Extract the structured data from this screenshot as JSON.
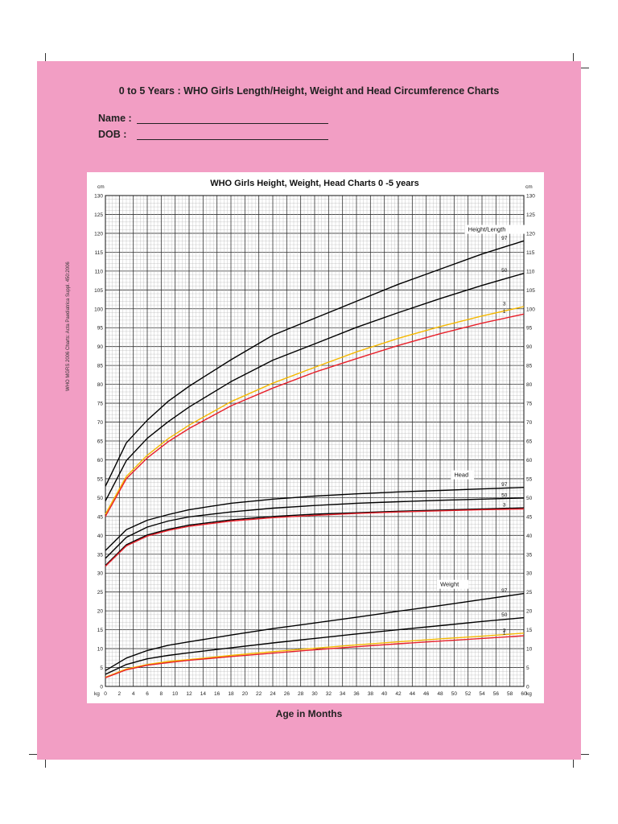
{
  "page": {
    "title": "0 to 5 Years : WHO Girls Length/Height, Weight and Head Circumference Charts",
    "name_label": "Name :",
    "dob_label": "DOB   :",
    "x_axis_title": "Age in Months",
    "reference": "WHO MGRS 2006 Charts: Acta Paediatrica Suppl. 450:2006",
    "colors": {
      "background": "#f29ec4",
      "p97": "#000000",
      "p50": "#000000",
      "p3": "#f5b800",
      "p1": "#e8202a"
    }
  },
  "chart_data": {
    "type": "line",
    "title": "WHO Girls Height, Weight, Head Charts 0 -5 years",
    "y_unit_label": "cm",
    "y_unit_label_bottom": "kg",
    "x_unit_label": "kg",
    "xlim": [
      0,
      60
    ],
    "ylim": [
      0,
      130
    ],
    "x_ticks": [
      0,
      2,
      4,
      6,
      8,
      10,
      12,
      14,
      16,
      18,
      20,
      22,
      24,
      26,
      28,
      30,
      32,
      34,
      36,
      38,
      40,
      42,
      44,
      46,
      48,
      50,
      52,
      54,
      56,
      58,
      60
    ],
    "y_ticks": [
      0,
      5,
      10,
      15,
      20,
      25,
      30,
      35,
      40,
      45,
      50,
      55,
      60,
      65,
      70,
      75,
      80,
      85,
      90,
      95,
      100,
      105,
      110,
      115,
      120,
      125,
      130
    ],
    "grid": true,
    "x": [
      0,
      3,
      6,
      9,
      12,
      18,
      24,
      30,
      36,
      42,
      48,
      54,
      60
    ],
    "groups": [
      {
        "name": "Height/Length",
        "series": [
          {
            "name": "97",
            "color": "#000000",
            "values": [
              53.0,
              64.5,
              70.5,
              75.5,
              79.5,
              86.5,
              93.0,
              97.5,
              102.0,
              106.5,
              110.5,
              114.5,
              118.0
            ]
          },
          {
            "name": "50",
            "color": "#000000",
            "values": [
              49.1,
              59.8,
              65.7,
              70.1,
              74.0,
              80.7,
              86.4,
              90.7,
              95.1,
              99.0,
              102.7,
              106.2,
              109.4
            ]
          },
          {
            "name": "3",
            "color": "#f5b800",
            "values": [
              45.6,
              55.6,
              61.2,
              65.6,
              69.2,
              75.4,
              80.3,
              84.5,
              88.6,
              92.2,
              95.3,
              98.1,
              100.6
            ]
          },
          {
            "name": "1",
            "color": "#e8202a",
            "values": [
              45.0,
              55.0,
              60.5,
              64.8,
              68.3,
              74.3,
              79.0,
              83.2,
              86.8,
              90.3,
              93.4,
              96.2,
              98.6
            ]
          }
        ]
      },
      {
        "name": "Head",
        "series": [
          {
            "name": "97",
            "color": "#000000",
            "values": [
              36.0,
              41.5,
              44.0,
              45.5,
              46.8,
              48.5,
              49.6,
              50.4,
              51.0,
              51.5,
              51.9,
              52.3,
              52.7
            ]
          },
          {
            "name": "50",
            "color": "#000000",
            "values": [
              33.9,
              39.5,
              42.2,
              43.8,
              44.9,
              46.2,
              47.2,
              47.9,
              48.5,
              48.9,
              49.3,
              49.6,
              49.9
            ]
          },
          {
            "name": "3",
            "color": "#000000",
            "values": [
              32.0,
              37.5,
              40.1,
              41.6,
              42.7,
              44.1,
              45.0,
              45.6,
              46.0,
              46.4,
              46.7,
              47.0,
              47.3
            ]
          },
          {
            "name": "",
            "color": "#e8202a",
            "values": [
              31.8,
              37.2,
              39.8,
              41.3,
              42.4,
              43.8,
              44.7,
              45.3,
              45.8,
              46.2,
              46.5,
              46.8,
              47.0
            ]
          }
        ]
      },
      {
        "name": "Weight",
        "series": [
          {
            "name": "97",
            "color": "#000000",
            "values": [
              4.2,
              7.5,
              9.5,
              10.9,
              11.8,
              13.6,
              15.3,
              16.8,
              18.3,
              19.9,
              21.4,
              23.0,
              24.6
            ]
          },
          {
            "name": "50",
            "color": "#000000",
            "values": [
              3.2,
              5.8,
              7.3,
              8.2,
              8.9,
              10.2,
              11.5,
              12.7,
              13.9,
              15.0,
              16.1,
              17.2,
              18.2
            ]
          },
          {
            "name": "3",
            "color": "#f5b800",
            "values": [
              2.4,
              4.6,
              5.8,
              6.6,
              7.1,
              8.2,
              9.2,
              10.1,
              11.0,
              11.8,
              12.6,
              13.3,
              14.1
            ]
          },
          {
            "name": "1",
            "color": "#e8202a",
            "values": [
              2.3,
              4.4,
              5.6,
              6.3,
              6.9,
              7.9,
              8.8,
              9.7,
              10.5,
              11.3,
              12.0,
              12.7,
              13.4
            ]
          }
        ]
      }
    ]
  }
}
